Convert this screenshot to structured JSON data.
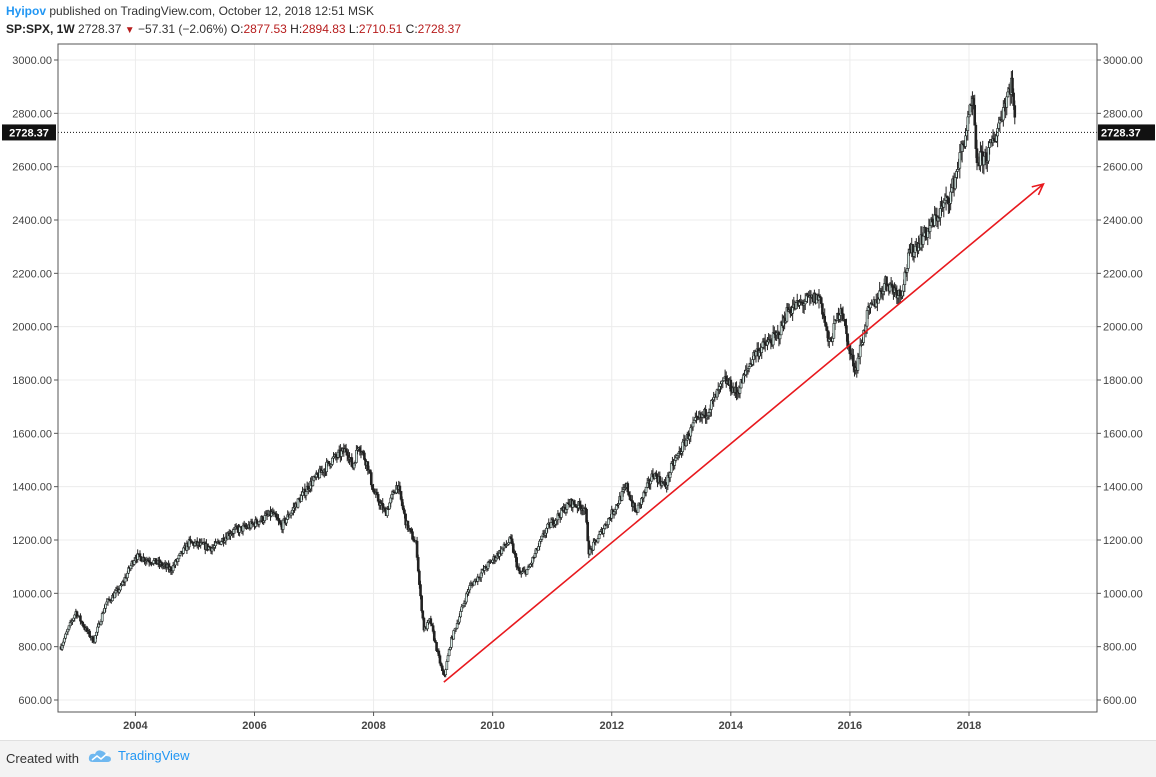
{
  "header": {
    "author": "Hyipov",
    "published_text": "published on TradingView.com, October 12, 2018 12:51 MSK",
    "symbol": "SP:SPX, 1W",
    "last": "2728.37",
    "change": "−57.31 (−2.06%)",
    "open_label": "O:",
    "open": "2877.53",
    "high_label": "H:",
    "high": "2894.83",
    "low_label": "L:",
    "low": "2710.51",
    "close_label": "C:",
    "close": "2728.37"
  },
  "footer": {
    "created_with": "Created with",
    "brand": "TradingView"
  },
  "colors": {
    "accent": "#2196f3",
    "down": "#b71c1c",
    "trendline": "#e8191e",
    "candle": "#222222"
  },
  "chart_data": {
    "type": "candlestick",
    "title": "SP:SPX, 1W",
    "xlabel": "",
    "ylabel": "",
    "x_range": [
      2002.7,
      2020.15
    ],
    "ylim": [
      555,
      3060
    ],
    "y_ticks": [
      "600.00",
      "800.00",
      "1000.00",
      "1200.00",
      "1400.00",
      "1600.00",
      "1800.00",
      "2000.00",
      "2200.00",
      "2400.00",
      "2600.00",
      "2800.00",
      "3000.00"
    ],
    "y_tick_values": [
      600,
      800,
      1000,
      1200,
      1400,
      1600,
      1800,
      2000,
      2200,
      2400,
      2600,
      2800,
      3000
    ],
    "x_ticks": [
      "2004",
      "2006",
      "2008",
      "2010",
      "2012",
      "2014",
      "2016",
      "2018"
    ],
    "x_tick_values": [
      2004,
      2006,
      2008,
      2010,
      2012,
      2014,
      2016,
      2018
    ],
    "last_price_label": "2728.37",
    "last_price": 2728.37,
    "grid": true,
    "trendline": {
      "from": [
        2009.18,
        667
      ],
      "to": [
        2019.25,
        2535
      ],
      "arrow": true
    },
    "price_path": [
      [
        2002.75,
        800
      ],
      [
        2002.9,
        880
      ],
      [
        2003.0,
        930
      ],
      [
        2003.15,
        870
      ],
      [
        2003.3,
        820
      ],
      [
        2003.5,
        960
      ],
      [
        2003.75,
        1020
      ],
      [
        2004.0,
        1140
      ],
      [
        2004.3,
        1120
      ],
      [
        2004.6,
        1090
      ],
      [
        2004.9,
        1190
      ],
      [
        2005.3,
        1170
      ],
      [
        2005.6,
        1230
      ],
      [
        2005.9,
        1250
      ],
      [
        2006.3,
        1300
      ],
      [
        2006.45,
        1250
      ],
      [
        2006.9,
        1400
      ],
      [
        2007.3,
        1500
      ],
      [
        2007.55,
        1540
      ],
      [
        2007.65,
        1470
      ],
      [
        2007.75,
        1560
      ],
      [
        2007.9,
        1480
      ],
      [
        2008.0,
        1380
      ],
      [
        2008.2,
        1300
      ],
      [
        2008.4,
        1410
      ],
      [
        2008.55,
        1260
      ],
      [
        2008.72,
        1180
      ],
      [
        2008.78,
        1000
      ],
      [
        2008.85,
        860
      ],
      [
        2008.95,
        900
      ],
      [
        2009.05,
        800
      ],
      [
        2009.18,
        683
      ],
      [
        2009.3,
        820
      ],
      [
        2009.45,
        920
      ],
      [
        2009.6,
        1020
      ],
      [
        2009.9,
        1100
      ],
      [
        2010.3,
        1200
      ],
      [
        2010.45,
        1070
      ],
      [
        2010.6,
        1090
      ],
      [
        2010.9,
        1240
      ],
      [
        2011.3,
        1340
      ],
      [
        2011.55,
        1320
      ],
      [
        2011.62,
        1150
      ],
      [
        2011.8,
        1220
      ],
      [
        2012.0,
        1300
      ],
      [
        2012.25,
        1400
      ],
      [
        2012.4,
        1300
      ],
      [
        2012.7,
        1450
      ],
      [
        2012.9,
        1400
      ],
      [
        2013.0,
        1470
      ],
      [
        2013.4,
        1640
      ],
      [
        2013.6,
        1680
      ],
      [
        2013.9,
        1800
      ],
      [
        2014.1,
        1750
      ],
      [
        2014.4,
        1900
      ],
      [
        2014.8,
        1970
      ],
      [
        2014.95,
        2060
      ],
      [
        2015.3,
        2100
      ],
      [
        2015.5,
        2110
      ],
      [
        2015.65,
        1930
      ],
      [
        2015.85,
        2080
      ],
      [
        2016.0,
        1900
      ],
      [
        2016.1,
        1840
      ],
      [
        2016.3,
        2050
      ],
      [
        2016.45,
        2100
      ],
      [
        2016.6,
        2170
      ],
      [
        2016.85,
        2120
      ],
      [
        2017.0,
        2270
      ],
      [
        2017.4,
        2390
      ],
      [
        2017.7,
        2500
      ],
      [
        2017.9,
        2680
      ],
      [
        2018.07,
        2850
      ],
      [
        2018.12,
        2620
      ],
      [
        2018.3,
        2640
      ],
      [
        2018.45,
        2720
      ],
      [
        2018.6,
        2840
      ],
      [
        2018.72,
        2920
      ],
      [
        2018.78,
        2728
      ]
    ]
  }
}
